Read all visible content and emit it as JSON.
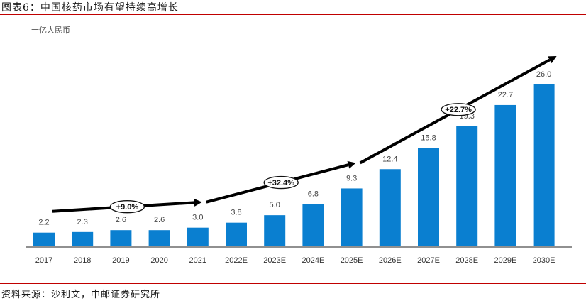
{
  "header": {
    "figure_title": "图表6：中国核药市场有望持续高增长"
  },
  "footer": {
    "source": "资料来源：沙利文，中邮证券研究所"
  },
  "colors": {
    "bar": "#0a7fd0",
    "axis": "#222222",
    "arrow": "#000000",
    "rule": "#c00000"
  },
  "chart_data": {
    "type": "bar",
    "unit_label": "十亿人民币",
    "categories": [
      "2017",
      "2018",
      "2019",
      "2020",
      "2021",
      "2022E",
      "2023E",
      "2024E",
      "2025E",
      "2026E",
      "2027E",
      "2028E",
      "2029E",
      "2030E"
    ],
    "values": [
      2.2,
      2.3,
      2.6,
      2.6,
      3.0,
      3.8,
      5.0,
      6.8,
      9.3,
      12.4,
      15.8,
      19.3,
      22.7,
      26.0
    ],
    "value_labels": [
      "2.2",
      "2.3",
      "2.6",
      "2.6",
      "3.0",
      "3.8",
      "5.0",
      "6.8",
      "9.3",
      "12.4",
      "15.8",
      "19.3",
      "22.7",
      "26.0"
    ],
    "ylim": [
      0,
      26.0
    ],
    "growth_annotations": [
      {
        "label": "+9.0%",
        "from": "2017",
        "to": "2021"
      },
      {
        "label": "+32.4%",
        "from": "2021",
        "to": "2025E"
      },
      {
        "label": "+22.7%",
        "from": "2025E",
        "to": "2030E"
      }
    ]
  }
}
